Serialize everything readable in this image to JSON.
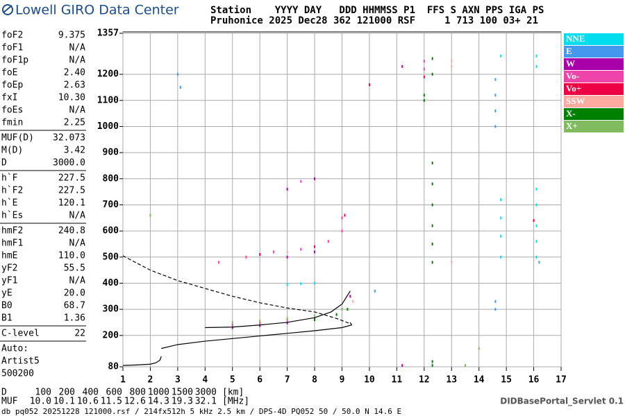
{
  "header": {
    "logo": "Lowell GIRO Data Center",
    "line1": "Station    YYYY DAY   DDD HHMMSS P1  FFS S AXN PPS IGA PS",
    "line2": "Pruhonice 2025 Dec28 362 121000 RSF     1 713 100 03+ 21"
  },
  "parameters": [
    [
      [
        "foF2",
        "9.375"
      ],
      [
        "foF1",
        "N/A"
      ],
      [
        "foF1p",
        "N/A"
      ],
      [
        "foE",
        "2.40"
      ],
      [
        "foEp",
        "2.63"
      ],
      [
        "fxI",
        "10.30"
      ],
      [
        "foEs",
        "N/A"
      ],
      [
        "fmin",
        "2.25"
      ]
    ],
    [
      [
        "MUF(D)",
        "32.073"
      ],
      [
        "M(D)",
        "3.42"
      ],
      [
        "D",
        "3000.0"
      ]
    ],
    [
      [
        "h`F",
        "227.5"
      ],
      [
        "h`F2",
        "227.5"
      ],
      [
        "h`E",
        "120.1"
      ],
      [
        "h`Es",
        "N/A"
      ]
    ],
    [
      [
        "hmF2",
        "240.8"
      ],
      [
        "hmF1",
        "N/A"
      ],
      [
        "hmE",
        "110.0"
      ],
      [
        "yF2",
        "55.5"
      ],
      [
        "yF1",
        "N/A"
      ],
      [
        "yE",
        "20.0"
      ],
      [
        "B0",
        "68.7"
      ],
      [
        "B1",
        "1.36"
      ]
    ],
    [
      [
        "C-level",
        "22"
      ]
    ]
  ],
  "auto": [
    "Auto:",
    "Artist5",
    "500200"
  ],
  "muf_table": {
    "d_label": "D",
    "d_values": [
      "100",
      "200",
      "400",
      "600",
      "800",
      "1000",
      "1500",
      "3000"
    ],
    "d_unit": "[km]",
    "muf_label": "MUF",
    "muf_values": [
      "10.0",
      "10.1",
      "10.6",
      "11.5",
      "12.6",
      "14.3",
      "19.3",
      "32.1"
    ],
    "muf_unit": "[MHz]"
  },
  "footer": "db pq052 20251228 121000.rsf / 214fx512h 5 kHz 2.5 km / DPS-4D PQ052 50 / 50.0 N 14.6 E",
  "servlet": "DIDBasePortal_Servlet 0.1",
  "chart_data": {
    "type": "scatter",
    "xlim": [
      1,
      17
    ],
    "xticks": [
      1,
      2,
      3,
      4,
      5,
      6,
      7,
      8,
      9,
      10,
      11,
      12,
      13,
      14,
      15,
      16,
      17
    ],
    "ylim": [
      80,
      1357
    ],
    "yticks": [
      80,
      200,
      300,
      400,
      500,
      600,
      700,
      800,
      900,
      1000,
      1100,
      1200,
      1357
    ],
    "grid": true,
    "series": [
      {
        "name": "NNE",
        "color": "#00ddee",
        "x": [
          14.8,
          14.8,
          14.8,
          14.8,
          16.1,
          16.1,
          16.1,
          16.1,
          16.1,
          16.1,
          16.1,
          14.8,
          7,
          7.5,
          8
        ],
        "y": [
          500,
          580,
          650,
          720,
          500,
          560,
          620,
          700,
          760,
          1230,
          1270,
          1270,
          395,
          398,
          400
        ]
      },
      {
        "name": "E",
        "color": "#4499ee",
        "x": [
          14.6,
          14.6,
          14.6,
          14.6,
          14.6,
          14.6,
          3,
          3.1,
          10.2,
          16.2
        ],
        "y": [
          1000,
          1060,
          1120,
          1180,
          330,
          300,
          1200,
          1150,
          370,
          480
        ]
      },
      {
        "name": "W",
        "color": "#aa00aa",
        "x": [
          5,
          6,
          7,
          8,
          9,
          9.3,
          7,
          8,
          7,
          8,
          11.2,
          11.2
        ],
        "y": [
          230,
          238,
          248,
          262,
          300,
          350,
          500,
          520,
          760,
          800,
          85,
          1230
        ]
      },
      {
        "name": "Vo-",
        "color": "#ee44aa",
        "x": [
          4.5,
          5.5,
          6.5,
          7.5,
          8.5,
          9,
          9,
          7.5,
          12,
          12,
          5,
          6,
          7
        ],
        "y": [
          480,
          500,
          520,
          530,
          560,
          600,
          650,
          790,
          1220,
          1250,
          240,
          250,
          260
        ]
      },
      {
        "name": "Vo+",
        "color": "#ee0044",
        "x": [
          10,
          16,
          12,
          9.1,
          6,
          8
        ],
        "y": [
          1160,
          640,
          1190,
          660,
          510,
          540
        ]
      },
      {
        "name": "SSW",
        "color": "#ffaaa0",
        "x": [
          13,
          13,
          13,
          7,
          9.4
        ],
        "y": [
          480,
          1230,
          1250,
          520,
          330
        ]
      },
      {
        "name": "X-",
        "color": "#008000",
        "x": [
          12.3,
          12.3,
          12.3,
          12.3,
          12.3,
          12.3,
          12.3,
          12.3,
          12.3,
          12.3,
          9.2,
          8.8,
          8,
          12,
          12
        ],
        "y": [
          480,
          550,
          620,
          700,
          780,
          860,
          1260,
          1200,
          100,
          85,
          300,
          280,
          260,
          1100,
          1120
        ]
      },
      {
        "name": "X+",
        "color": "#80bb60",
        "x": [
          5,
          6,
          7,
          8,
          9,
          2,
          14,
          13.5
        ],
        "y": [
          250,
          255,
          265,
          275,
          300,
          660,
          150,
          85
        ]
      }
    ],
    "profiles": [
      {
        "style": "solid",
        "x": [
          1,
          1.5,
          2,
          2.2,
          2.35,
          2.4
        ],
        "y": [
          85,
          87,
          90,
          95,
          105,
          120
        ]
      },
      {
        "style": "solid",
        "x": [
          2.4,
          3,
          4,
          5,
          6,
          7,
          8,
          9,
          9.35,
          9.3
        ],
        "y": [
          150,
          165,
          178,
          188,
          198,
          208,
          218,
          230,
          240,
          250
        ]
      },
      {
        "style": "solid",
        "x": [
          4,
          5,
          6,
          7,
          8,
          8.6,
          9,
          9.3
        ],
        "y": [
          230,
          232,
          240,
          250,
          268,
          290,
          320,
          370
        ]
      },
      {
        "style": "dashed",
        "x": [
          1,
          2,
          3,
          4,
          5,
          6,
          7,
          8,
          8.8,
          9.3
        ],
        "y": [
          505,
          450,
          410,
          380,
          350,
          325,
          305,
          290,
          265,
          245
        ]
      }
    ]
  }
}
